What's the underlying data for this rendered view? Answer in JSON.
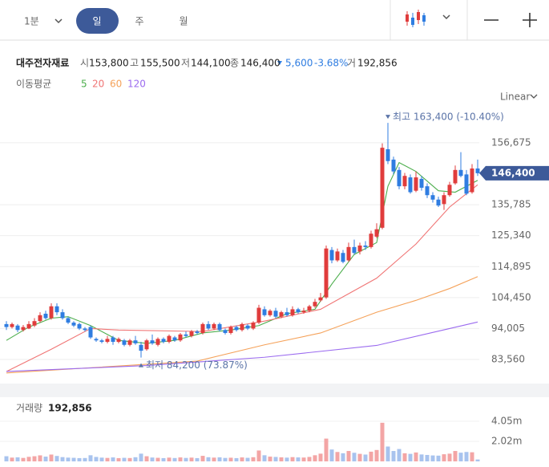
{
  "toolbar": {
    "interval": "1분",
    "tabs": [
      "일",
      "주",
      "월"
    ]
  },
  "header": {
    "name": "대주전자재료",
    "stats": [
      {
        "label": "시",
        "value": "153,800"
      },
      {
        "label": "고",
        "value": "155,500"
      },
      {
        "label": "저",
        "value": "144,100"
      },
      {
        "label": "종",
        "value": "146,400"
      }
    ],
    "change": "5,600",
    "change_pct": "-3.68%",
    "volume_label": "거",
    "volume_value": "192,856"
  },
  "chart_data": {
    "type": "candlestick",
    "scale_label": "Linear",
    "grid": true,
    "up_color": "#e03c3c",
    "down_color": "#2f7de1",
    "categories": [
      null,
      null,
      null,
      null,
      null,
      null,
      null,
      null,
      null,
      null,
      null,
      null,
      null,
      null,
      null,
      null,
      null,
      null,
      null,
      null,
      null,
      null,
      null,
      null,
      null,
      null,
      null,
      null,
      null,
      null,
      null,
      null,
      null,
      null,
      null,
      null,
      null,
      null,
      null,
      null,
      null,
      null,
      null,
      null,
      null,
      null,
      null,
      null,
      null,
      null,
      null,
      null,
      null,
      null,
      null,
      null,
      null,
      null,
      null,
      null,
      null,
      null,
      null,
      null,
      null,
      null,
      null,
      null,
      null,
      null,
      null,
      null,
      null,
      null,
      null,
      null,
      null,
      null,
      null,
      null,
      null,
      null,
      null,
      null,
      null
    ],
    "open": [
      95500,
      94500,
      95000,
      93500,
      94000,
      95000,
      96500,
      99000,
      97500,
      101500,
      99500,
      97500,
      96000,
      95500,
      94000,
      94500,
      90500,
      90000,
      89500,
      91000,
      89500,
      90000,
      88500,
      90000,
      88500,
      87000,
      90000,
      88500,
      90500,
      89500,
      91000,
      90000,
      92000,
      91500,
      93000,
      92500,
      95500,
      94000,
      95500,
      93500,
      92500,
      94500,
      93500,
      95000,
      94000,
      96000,
      100500,
      98500,
      100000,
      98000,
      99500,
      98500,
      100500,
      99500,
      100000,
      101500,
      103500,
      104500,
      120500,
      117000,
      119500,
      117000,
      121500,
      120000,
      122000,
      121500,
      125000,
      128000,
      154500,
      151000,
      147500,
      142000,
      145000,
      140500,
      144500,
      142000,
      139000,
      137500,
      136000,
      139000,
      143000,
      147500,
      146000,
      140000,
      148000
    ],
    "high": [
      96500,
      96000,
      95500,
      95200,
      96500,
      97500,
      99500,
      100000,
      102500,
      102500,
      100500,
      98000,
      96500,
      96000,
      94500,
      95000,
      91000,
      90500,
      91500,
      91500,
      91000,
      90500,
      90500,
      91500,
      89500,
      90500,
      92000,
      91000,
      91000,
      92000,
      91500,
      92500,
      93000,
      93500,
      93500,
      96000,
      96500,
      96000,
      96000,
      94000,
      95000,
      95000,
      96000,
      95500,
      96500,
      102000,
      101500,
      100500,
      101000,
      100000,
      101000,
      101500,
      101000,
      101000,
      102000,
      104000,
      106000,
      122000,
      121500,
      121000,
      120500,
      123000,
      124000,
      123000,
      123500,
      127000,
      129500,
      156500,
      163400,
      152000,
      148500,
      146500,
      146000,
      147000,
      145500,
      143000,
      140000,
      138500,
      140000,
      143500,
      149000,
      153500,
      147500,
      149500,
      151000
    ],
    "low": [
      93500,
      94000,
      92800,
      93000,
      93800,
      94500,
      96000,
      97000,
      97000,
      98500,
      97000,
      95500,
      94500,
      93500,
      93000,
      90500,
      89500,
      89000,
      89000,
      88500,
      89000,
      88000,
      88000,
      88500,
      84200,
      86500,
      88500,
      88000,
      89000,
      89000,
      89500,
      89500,
      91000,
      91000,
      92000,
      92000,
      93500,
      93500,
      93000,
      92000,
      92000,
      93000,
      93000,
      93500,
      93500,
      95500,
      98000,
      98000,
      97500,
      97500,
      98000,
      98000,
      99000,
      99000,
      99500,
      101000,
      103000,
      104000,
      116000,
      116500,
      116000,
      116500,
      119000,
      119000,
      120500,
      121000,
      124500,
      127500,
      149500,
      146000,
      141000,
      141000,
      139500,
      140000,
      140500,
      138000,
      136500,
      135000,
      134000,
      138500,
      142500,
      145000,
      139000,
      139500,
      145500
    ],
    "close": [
      94500,
      95500,
      93500,
      94500,
      95500,
      96500,
      98500,
      97500,
      101500,
      99500,
      97500,
      96000,
      95000,
      94000,
      93500,
      91000,
      90000,
      89500,
      90500,
      89500,
      90500,
      88500,
      90000,
      89000,
      86500,
      90000,
      89000,
      90500,
      89500,
      91500,
      90000,
      92000,
      91500,
      93000,
      92500,
      95500,
      94000,
      95500,
      93500,
      92500,
      94500,
      93500,
      95500,
      94000,
      96000,
      101000,
      98500,
      100000,
      98000,
      99500,
      98500,
      100500,
      99500,
      100000,
      101500,
      103000,
      104500,
      121000,
      117000,
      120000,
      116500,
      121500,
      119500,
      122000,
      121500,
      126000,
      127500,
      155000,
      150500,
      147000,
      142000,
      145500,
      140000,
      145000,
      141500,
      139000,
      137500,
      135500,
      139000,
      142500,
      147500,
      145500,
      139500,
      148000,
      146400
    ],
    "ylim": [
      77600,
      168300
    ],
    "yticks": [
      {
        "value": 156675,
        "label": "156,675"
      },
      {
        "value": 135785,
        "label": "135,785"
      },
      {
        "value": 125340,
        "label": "125,340"
      },
      {
        "value": 114895,
        "label": "114,895"
      },
      {
        "value": 104450,
        "label": "104,450"
      },
      {
        "value": 94005,
        "label": "94,005"
      },
      {
        "value": 83560,
        "label": "83,560"
      }
    ],
    "current_price": {
      "value": 146400,
      "label": "146,400"
    },
    "annotations": {
      "high": {
        "value": 163400,
        "label": "최고 163,400 (-10.40%)"
      },
      "low": {
        "value": 84200,
        "label": "최저 84,200 (73.87%)"
      }
    },
    "ma_label": "이동평균",
    "ma_series": [
      {
        "name": "5",
        "color": "#4cae4c",
        "x": [
          0,
          4,
          8,
          11,
          15,
          20,
          25,
          30,
          35,
          40,
          45,
          50,
          55,
          58,
          62,
          66,
          68,
          70,
          73,
          77,
          80,
          84
        ],
        "values": [
          90000,
          94500,
          97500,
          98000,
          95000,
          90000,
          89000,
          90000,
          92500,
          93500,
          95000,
          99000,
          100500,
          109000,
          119000,
          123000,
          142000,
          150000,
          147000,
          140500,
          140000,
          144000
        ]
      },
      {
        "name": "20",
        "color": "#f07575",
        "x": [
          0,
          8,
          15,
          20,
          35,
          46,
          56,
          66,
          73,
          79,
          84
        ],
        "values": [
          79500,
          87000,
          94000,
          93500,
          93000,
          96500,
          100500,
          111000,
          122500,
          135000,
          142500
        ]
      },
      {
        "name": "60",
        "color": "#f5a25a",
        "x": [
          0,
          34,
          46,
          56,
          66,
          73,
          79,
          84
        ],
        "values": [
          79000,
          83000,
          88500,
          92500,
          99500,
          103500,
          107500,
          111500
        ]
      },
      {
        "name": "120",
        "color": "#9b6bef",
        "x": [
          0,
          25,
          46,
          66,
          79,
          84
        ],
        "values": [
          79500,
          81500,
          84300,
          88300,
          94000,
          96200
        ]
      }
    ],
    "volume": {
      "title": "거래량",
      "value_label": "192,856",
      "up_color": "#f3a5a5",
      "down_color": "#a8c3ee",
      "ylim": [
        0,
        6075000
      ],
      "yticks": [
        {
          "value": 4050000,
          "label": "4.05m"
        },
        {
          "value": 2020000,
          "label": "2.02m"
        }
      ],
      "values": [
        520000,
        380000,
        410000,
        350000,
        460000,
        520000,
        610000,
        480000,
        690000,
        550000,
        430000,
        380000,
        360000,
        330000,
        340000,
        620000,
        450000,
        380000,
        350000,
        400000,
        330000,
        360000,
        340000,
        420000,
        780000,
        520000,
        390000,
        360000,
        330000,
        380000,
        340000,
        400000,
        350000,
        380000,
        330000,
        560000,
        420000,
        380000,
        410000,
        350000,
        370000,
        330000,
        400000,
        360000,
        420000,
        1100000,
        620000,
        480000,
        450000,
        410000,
        380000,
        430000,
        400000,
        390000,
        450000,
        620000,
        780000,
        2300000,
        1200000,
        950000,
        820000,
        1050000,
        870000,
        760000,
        690000,
        980000,
        1150000,
        3900000,
        1500000,
        1050000,
        1250000,
        820000,
        760000,
        900000,
        700000,
        650000,
        600000,
        580000,
        720000,
        780000,
        1050000,
        880000,
        950000,
        920000,
        192856
      ]
    }
  }
}
